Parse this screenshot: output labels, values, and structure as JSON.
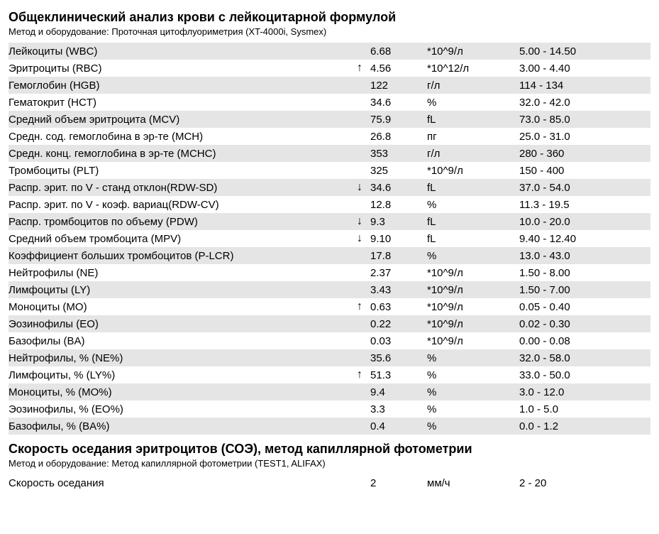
{
  "section1": {
    "title": "Общеклинический анализ крови с лейкоцитарной формулой",
    "method": "Метод и оборудование: Проточная цитофлуориметрия (XT-4000i, Sysmex)",
    "rows": [
      {
        "name": "Лейкоциты (WBC)",
        "arrow": "",
        "value": "6.68",
        "unit": "*10^9/л",
        "range": "5.00 - 14.50"
      },
      {
        "name": "Эритроциты (RBC)",
        "arrow": "↑",
        "value": "4.56",
        "unit": "*10^12/л",
        "range": "3.00 - 4.40"
      },
      {
        "name": "Гемоглобин (HGB)",
        "arrow": "",
        "value": "122",
        "unit": "г/л",
        "range": "114 - 134"
      },
      {
        "name": "Гематокрит (HCT)",
        "arrow": "",
        "value": "34.6",
        "unit": "%",
        "range": "32.0 - 42.0"
      },
      {
        "name": "Средний объем эритроцита (MCV)",
        "arrow": "",
        "value": "75.9",
        "unit": "fL",
        "range": "73.0 - 85.0"
      },
      {
        "name": "Средн. сод. гемоглобина в эр-те (MCH)",
        "arrow": "",
        "value": "26.8",
        "unit": "пг",
        "range": "25.0 - 31.0"
      },
      {
        "name": "Средн. конц. гемоглобина в эр-те (MCHC)",
        "arrow": "",
        "value": "353",
        "unit": "г/л",
        "range": "280 - 360"
      },
      {
        "name": "Тромбоциты (PLT)",
        "arrow": "",
        "value": "325",
        "unit": "*10^9/л",
        "range": "150 - 400"
      },
      {
        "name": "Распр. эрит. по V - станд отклон(RDW-SD)",
        "arrow": "↓",
        "value": "34.6",
        "unit": "fL",
        "range": "37.0 - 54.0"
      },
      {
        "name": "Распр. эрит. по V - коэф. вариац(RDW-CV)",
        "arrow": "",
        "value": "12.8",
        "unit": "%",
        "range": "11.3 - 19.5"
      },
      {
        "name": "Распр. тромбоцитов по объему (PDW)",
        "arrow": "↓",
        "value": "9.3",
        "unit": "fL",
        "range": "10.0 - 20.0"
      },
      {
        "name": "Средний объем тромбоцита (MPV)",
        "arrow": "↓",
        "value": "9.10",
        "unit": "fL",
        "range": "9.40 - 12.40"
      },
      {
        "name": "Коэффициент больших тромбоцитов (P-LCR)",
        "arrow": "",
        "value": "17.8",
        "unit": "%",
        "range": "13.0 - 43.0"
      },
      {
        "name": "Нейтрофилы (NE)",
        "arrow": "",
        "value": "2.37",
        "unit": "*10^9/л",
        "range": "1.50 - 8.00"
      },
      {
        "name": "Лимфоциты (LY)",
        "arrow": "",
        "value": "3.43",
        "unit": "*10^9/л",
        "range": "1.50 - 7.00"
      },
      {
        "name": "Моноциты (MO)",
        "arrow": "↑",
        "value": "0.63",
        "unit": "*10^9/л",
        "range": "0.05 - 0.40"
      },
      {
        "name": "Эозинофилы (EO)",
        "arrow": "",
        "value": "0.22",
        "unit": "*10^9/л",
        "range": "0.02 - 0.30"
      },
      {
        "name": "Базофилы (BA)",
        "arrow": "",
        "value": "0.03",
        "unit": "*10^9/л",
        "range": "0.00 - 0.08"
      },
      {
        "name": "Нейтрофилы, % (NE%)",
        "arrow": "",
        "value": "35.6",
        "unit": "%",
        "range": "32.0 - 58.0"
      },
      {
        "name": "Лимфоциты, % (LY%)",
        "arrow": "↑",
        "value": "51.3",
        "unit": "%",
        "range": "33.0 - 50.0"
      },
      {
        "name": "Моноциты, % (MO%)",
        "arrow": "",
        "value": "9.4",
        "unit": "%",
        "range": "3.0 - 12.0"
      },
      {
        "name": "Эозинофилы, % (EO%)",
        "arrow": "",
        "value": "3.3",
        "unit": "%",
        "range": "1.0 - 5.0"
      },
      {
        "name": "Базофилы, % (BA%)",
        "arrow": "",
        "value": "0.4",
        "unit": "%",
        "range": "0.0 - 1.2"
      }
    ]
  },
  "section2": {
    "title": "Скорость оседания эритроцитов (СОЭ), метод капиллярной фотометрии",
    "method": "Метод и оборудование: Метод капиллярной фотометрии (TEST1, ALIFAX)",
    "rows": [
      {
        "name": "Скорость оседания",
        "arrow": "",
        "value": "2",
        "unit": "мм/ч",
        "range": "2 - 20"
      }
    ]
  },
  "style": {
    "odd_row_bg": "#e5e5e5",
    "even_row_bg": "#ffffff",
    "text_color": "#000000",
    "title_fontsize": 18,
    "body_fontsize": 15,
    "method_fontsize": 13
  }
}
